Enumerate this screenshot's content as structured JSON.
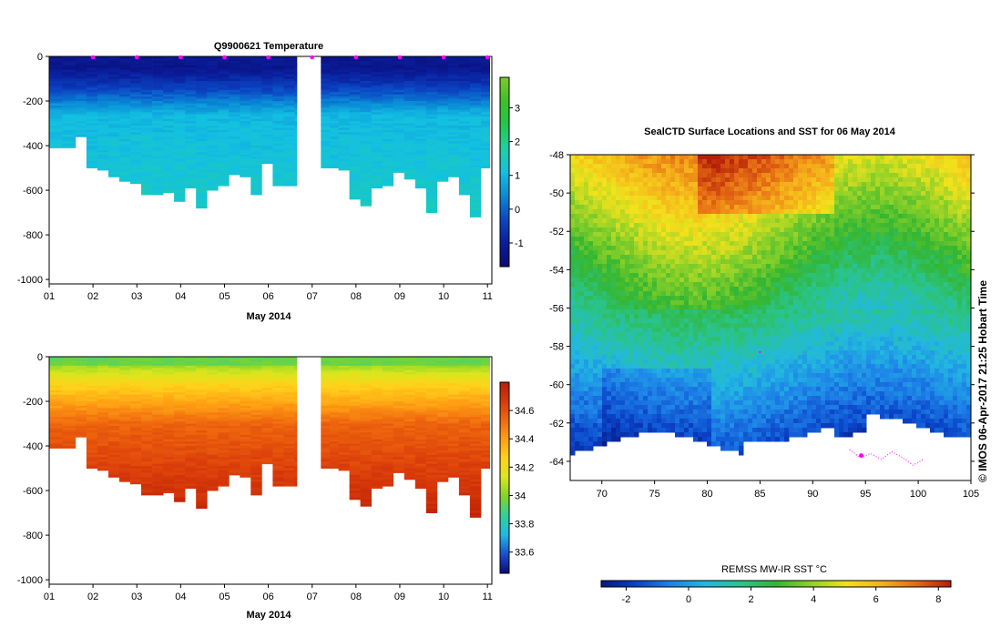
{
  "colors": {
    "temp_scale": [
      "#0b0a72",
      "#0a1e9c",
      "#0b47c4",
      "#0a8ad6",
      "#13c0e2",
      "#1fd1a0",
      "#22c74a",
      "#3cc128",
      "#7ccb2a"
    ],
    "salt_scale": [
      "#0a0a78",
      "#1a4fd0",
      "#1fb8e6",
      "#2ed29a",
      "#7fd428",
      "#d9e61e",
      "#ffd21a",
      "#ffa114",
      "#f06a0e",
      "#d93a0a",
      "#b81e06"
    ],
    "sst_scale": [
      "#07167a",
      "#0a42c8",
      "#1e82e8",
      "#22b8e0",
      "#2ac48a",
      "#33b632",
      "#8ed128",
      "#f2e21c",
      "#f5b21b",
      "#e56a14",
      "#b41e08"
    ],
    "marker": "#ff00ff"
  },
  "chart_data": [
    {
      "id": "profile_temperature",
      "type": "heatmap",
      "title": "Q9900621  Temperature",
      "xlabel": "May 2014",
      "ylabel": "",
      "xlim": [
        1,
        11.1
      ],
      "ylim": [
        -1020,
        0
      ],
      "x_ticks": [
        "01",
        "02",
        "03",
        "04",
        "05",
        "06",
        "07",
        "08",
        "09",
        "10",
        "11"
      ],
      "y_ticks": [
        "0",
        "-200",
        "-400",
        "-600",
        "-800",
        "-1000"
      ],
      "y_tick_values": [
        0,
        -200,
        -400,
        -600,
        -800,
        -1000
      ],
      "colorbar": {
        "range": [
          -1.7,
          3.9
        ],
        "ticks": [
          "-1",
          "0",
          "1",
          "2",
          "3"
        ],
        "tick_values": [
          -1,
          0,
          1,
          2,
          3
        ]
      },
      "profile_days": [
        1.0,
        1.3,
        1.6,
        1.85,
        2.1,
        2.35,
        2.6,
        2.85,
        3.1,
        3.35,
        3.6,
        3.85,
        4.1,
        4.35,
        4.6,
        4.85,
        5.1,
        5.35,
        5.6,
        5.85,
        6.1,
        6.35,
        6.6,
        7.2,
        7.4,
        7.6,
        7.85,
        8.1,
        8.35,
        8.6,
        8.85,
        9.1,
        9.35,
        9.6,
        9.85,
        10.1,
        10.35,
        10.6,
        10.85
      ],
      "profile_max_depth": [
        -410,
        -410,
        -360,
        -500,
        -510,
        -540,
        -560,
        -570,
        -620,
        -620,
        -610,
        -645,
        -590,
        -680,
        -600,
        -580,
        -530,
        -540,
        -615,
        -480,
        -580,
        -580,
        -580,
        -500,
        -500,
        -510,
        -640,
        -665,
        -590,
        -580,
        -520,
        -550,
        -590,
        -700,
        -560,
        -540,
        -620,
        -720,
        -500
      ],
      "surface_markers": [
        2,
        3,
        4,
        5,
        6,
        7,
        8,
        9,
        10,
        11
      ]
    },
    {
      "id": "profile_salinity",
      "type": "heatmap",
      "title": "",
      "xlabel": "May 2014",
      "ylabel": "",
      "xlim": [
        1,
        11.1
      ],
      "ylim": [
        -1020,
        0
      ],
      "x_ticks": [
        "01",
        "02",
        "03",
        "04",
        "05",
        "06",
        "07",
        "08",
        "09",
        "10",
        "11"
      ],
      "y_ticks": [
        "0",
        "-200",
        "-400",
        "-600",
        "-800",
        "-1000"
      ],
      "y_tick_values": [
        0,
        -200,
        -400,
        -600,
        -800,
        -1000
      ],
      "colorbar": {
        "range": [
          33.45,
          34.8
        ],
        "ticks": [
          "33.6",
          "33.8",
          "34",
          "34.2",
          "34.4",
          "34.6"
        ],
        "tick_values": [
          33.6,
          33.8,
          34.0,
          34.2,
          34.4,
          34.6
        ]
      }
    },
    {
      "id": "sst_map",
      "type": "heatmap",
      "title": "SealCTD Surface Locations and SST for 06 May 2014",
      "xlim": [
        67,
        105
      ],
      "ylim": [
        -65,
        -48
      ],
      "x_ticks": [
        "70",
        "75",
        "80",
        "85",
        "90",
        "95",
        "100",
        "105"
      ],
      "x_tick_values": [
        70,
        75,
        80,
        85,
        90,
        95,
        100,
        105
      ],
      "y_ticks": [
        "-48",
        "-50",
        "-52",
        "-54",
        "-56",
        "-58",
        "-60",
        "-62",
        "-64"
      ],
      "y_tick_values": [
        -48,
        -50,
        -52,
        -54,
        -56,
        -58,
        -60,
        -62,
        -64
      ],
      "side_label": "© IMOS 06-Apr-2017 21:25 Hobart Time",
      "colorbar": {
        "label": "REMSS MW-IR SST °C",
        "range": [
          -2.8,
          8.4
        ],
        "ticks": [
          "-2",
          "0",
          "2",
          "4",
          "6",
          "8"
        ],
        "tick_values": [
          -2,
          0,
          2,
          4,
          6,
          8
        ]
      }
    }
  ]
}
